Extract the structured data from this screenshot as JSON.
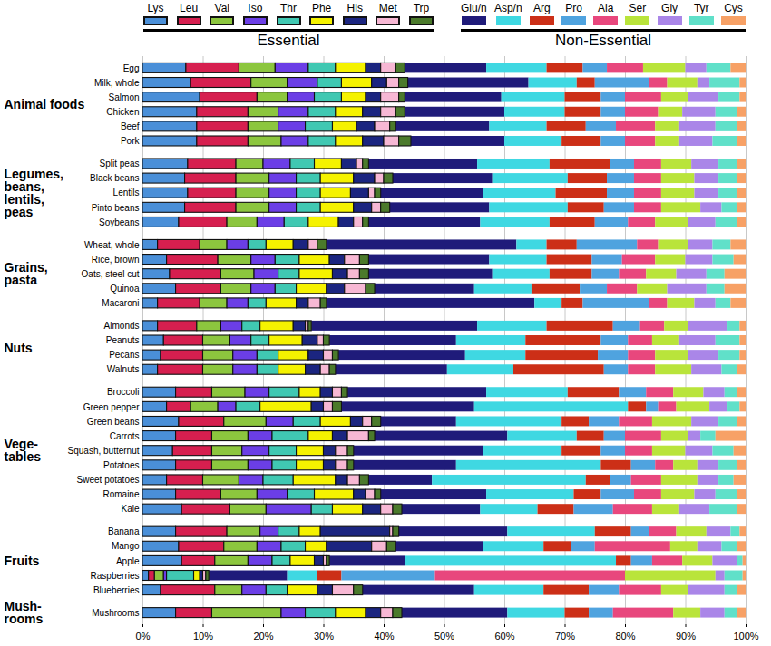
{
  "chart_data": {
    "type": "bar",
    "orientation": "horizontal",
    "stacked": true,
    "grid": true,
    "legend": "top",
    "xlim": [
      0,
      100
    ],
    "xticks": [
      {
        "value": 0,
        "label": "0%"
      },
      {
        "value": 10,
        "label": "10%"
      },
      {
        "value": 20,
        "label": "20%"
      },
      {
        "value": 30,
        "label": "30%"
      },
      {
        "value": 40,
        "label": "40%"
      },
      {
        "value": 50,
        "label": "50%"
      },
      {
        "value": 60,
        "label": "60%"
      },
      {
        "value": 70,
        "label": "70%"
      },
      {
        "value": 80,
        "label": "80%"
      },
      {
        "value": 90,
        "label": "90%"
      },
      {
        "value": 100,
        "label": "100%"
      }
    ],
    "groups": [
      {
        "label": "Animal foods",
        "categories": [
          "Egg",
          "Milk, whole",
          "Salmon",
          "Chicken",
          "Beef",
          "Pork"
        ]
      },
      {
        "label": "Legumes,\nbeans,\nlentils,\npeas",
        "categories": [
          "Split peas",
          "Black beans",
          "Lentils",
          "Pinto beans",
          "Soybeans"
        ]
      },
      {
        "label": "Grains,\npasta",
        "categories": [
          "Wheat, whole",
          "Rice, brown",
          "Oats, steel cut",
          "Quinoa",
          "Macaroni"
        ]
      },
      {
        "label": "Nuts",
        "categories": [
          "Almonds",
          "Peanuts",
          "Pecans",
          "Walnuts"
        ]
      },
      {
        "label": "Vege-\ntables",
        "categories": [
          "Broccoli",
          "Green pepper",
          "Green beans",
          "Carrots",
          "Squash, butternut",
          "Potatoes",
          "Sweet potatoes",
          "Romaine",
          "Kale"
        ]
      },
      {
        "label": "Fruits",
        "categories": [
          "Banana",
          "Mango",
          "Apple",
          "Raspberries",
          "Blueberries"
        ]
      },
      {
        "label": "Mush-\nrooms",
        "categories": [
          "Mushrooms"
        ]
      }
    ],
    "series": [
      {
        "name": "Lys",
        "class": "Essential",
        "color": "#4a8fd8",
        "values": [
          7.2,
          8,
          9.5,
          9,
          9,
          9,
          7.5,
          7,
          7.5,
          7,
          6,
          2.5,
          4,
          4.5,
          5.5,
          2.5,
          2.5,
          3.5,
          3,
          2.5,
          5.5,
          4,
          6,
          5.5,
          5,
          5.5,
          4,
          5.5,
          6.5,
          5.5,
          6,
          6.5,
          1,
          3,
          5.5
        ]
      },
      {
        "name": "Leu",
        "class": "Essential",
        "color": "#d61f4f",
        "values": [
          8.8,
          10,
          9.5,
          8.5,
          8.5,
          8.5,
          8,
          8.5,
          8,
          8.5,
          8,
          7,
          8.5,
          8.5,
          7.5,
          7,
          6.5,
          6.5,
          7,
          7.5,
          6,
          4,
          7.5,
          6,
          6.5,
          6,
          6,
          7.5,
          8,
          8.5,
          7.5,
          5.5,
          1,
          9,
          6
        ]
      },
      {
        "name": "Val",
        "class": "Essential",
        "color": "#8cc63e",
        "values": [
          6,
          6,
          5,
          5,
          5,
          5.5,
          4.5,
          5.5,
          5.5,
          5.5,
          5,
          4.5,
          5.5,
          5.5,
          5,
          4.5,
          4,
          4.5,
          5,
          5,
          5.5,
          4.5,
          7,
          6,
          5,
          6,
          6,
          6,
          6,
          5.5,
          5.5,
          5.5,
          1.5,
          4.5,
          11.5
        ]
      },
      {
        "name": "Iso",
        "class": "Essential",
        "color": "#6b3ee6",
        "values": [
          5.5,
          5,
          4.5,
          5,
          4.5,
          4.5,
          4.5,
          4.5,
          4.5,
          4.5,
          4.5,
          3.5,
          4,
          4,
          4,
          3.5,
          3.5,
          3.5,
          4,
          4,
          4,
          3,
          4.5,
          4,
          4.5,
          4,
          4,
          5,
          7.5,
          3,
          4,
          4,
          0.5,
          4,
          4
        ]
      },
      {
        "name": "Thr",
        "class": "Essential",
        "color": "#40c8b2",
        "values": [
          4.5,
          4,
          4.5,
          4.5,
          4.5,
          4.5,
          4,
          4,
          4,
          4,
          4,
          3,
          4,
          3.5,
          3.5,
          3,
          3,
          3,
          3.5,
          3.5,
          5,
          4,
          4.5,
          6,
          4.5,
          4,
          5,
          4.5,
          3.5,
          3.5,
          4,
          3,
          4.5,
          3.5,
          5
        ]
      },
      {
        "name": "Phe",
        "class": "Essential",
        "color": "#f5f200",
        "values": [
          5,
          5,
          4,
          4.5,
          4,
          4.5,
          4.5,
          5.5,
          5,
          5.5,
          5,
          4.5,
          5,
          5.5,
          5,
          5,
          5.5,
          5.5,
          5,
          4.5,
          3.5,
          8.5,
          5,
          4,
          4.5,
          4.5,
          7,
          6.5,
          5,
          3.5,
          3.5,
          4,
          1,
          5,
          5
        ]
      },
      {
        "name": "His",
        "class": "Essential",
        "color": "#1b2580",
        "values": [
          2.5,
          2.5,
          2.5,
          3,
          3,
          3.5,
          2.5,
          3.5,
          3,
          3,
          2.5,
          2.5,
          2.5,
          2.5,
          3,
          2,
          2,
          2.5,
          2.5,
          2.5,
          2,
          2,
          2,
          2.5,
          2,
          2,
          2,
          2,
          3,
          11.5,
          7.5,
          1.5,
          0.5,
          2.5,
          2.5
        ]
      },
      {
        "name": "Met",
        "class": "Essential",
        "color": "#f7b8d4",
        "values": [
          2.5,
          2,
          3,
          2.5,
          2.5,
          2.5,
          1,
          1.5,
          1,
          1.5,
          1.5,
          1.5,
          2.5,
          2,
          3.5,
          2,
          0.5,
          1,
          1.5,
          1.5,
          1.5,
          1.5,
          1.5,
          3.5,
          2,
          2,
          2,
          1.5,
          2,
          0.5,
          2.5,
          0.5,
          0.5,
          3.5,
          2
        ]
      },
      {
        "name": "Trp",
        "class": "Essential",
        "color": "#4b7a2b",
        "values": [
          1.5,
          1.5,
          1,
          1.5,
          1,
          2,
          1,
          1.5,
          1,
          1.5,
          1,
          1.5,
          1.5,
          1.5,
          1.5,
          1,
          0.5,
          1,
          1,
          1,
          1,
          1.5,
          1.5,
          1,
          1,
          1,
          1.5,
          1,
          1.5,
          1,
          1.5,
          0.5,
          0.5,
          1.5,
          1.5
        ]
      },
      {
        "name": "Glu/n",
        "class": "Non-Essential",
        "color": "#1f1b7a",
        "values": [
          13.5,
          20,
          16,
          16.5,
          15.5,
          15.5,
          18,
          16.5,
          17,
          16.5,
          18.5,
          31.5,
          20,
          20.5,
          16.5,
          34.5,
          27.5,
          21,
          21,
          18.5,
          23,
          22,
          12.5,
          22,
          21.5,
          17,
          10.5,
          17.5,
          13,
          18,
          14.5,
          12.5,
          13,
          18.5,
          17.5
        ]
      },
      {
        "name": "Asp/n",
        "class": "Non-Essential",
        "color": "#3fd8e2",
        "values": [
          10,
          8,
          10.5,
          10,
          9.5,
          9.5,
          12,
          12.5,
          12,
          13,
          11.5,
          5,
          9.5,
          9.5,
          9.5,
          4.5,
          11.5,
          11.5,
          10,
          11,
          13.5,
          25.5,
          17.5,
          11.5,
          13,
          24,
          25.5,
          14.5,
          9.5,
          14.5,
          10,
          35,
          5,
          11.5,
          9.5
        ]
      },
      {
        "name": "Arg",
        "class": "Non-Essential",
        "color": "#cc2f17",
        "values": [
          6,
          3,
          6,
          6,
          6.5,
          6.5,
          10,
          6.5,
          8.5,
          6,
          7.5,
          5,
          7.5,
          7,
          8,
          3.5,
          11,
          12.5,
          12,
          15,
          8.5,
          3,
          4.5,
          4.5,
          6.5,
          5,
          4,
          4.5,
          6,
          6,
          4.5,
          2.5,
          4,
          7.5,
          4
        ]
      },
      {
        "name": "Pro",
        "class": "Non-Essential",
        "color": "#4fa3df",
        "values": [
          4,
          9,
          4,
          4,
          5,
          4,
          4,
          4.5,
          4.5,
          5,
          5.5,
          10,
          5,
          4.5,
          4.5,
          11,
          4.5,
          4.5,
          5,
          4,
          4.5,
          2,
          5,
          3.5,
          4,
          4,
          3.5,
          5.5,
          6.5,
          3,
          4,
          3.5,
          15.5,
          5,
          4
        ]
      },
      {
        "name": "Ala",
        "class": "Non-Essential",
        "color": "#e8477d",
        "values": [
          6,
          3,
          6,
          5.5,
          6.5,
          5,
          4.5,
          4.5,
          4.5,
          4.5,
          4.5,
          3.5,
          5.5,
          4.5,
          5,
          3,
          4,
          4,
          4.5,
          4.5,
          4.5,
          3,
          5.5,
          6,
          4.5,
          3,
          5,
          4.5,
          6.5,
          4.5,
          12.5,
          5,
          31.5,
          7,
          10
        ]
      },
      {
        "name": "Ser",
        "class": "Non-Essential",
        "color": "#b9e43b",
        "values": [
          7,
          5,
          4.5,
          4,
          4,
          4,
          5,
          5.5,
          5.5,
          6.5,
          5.5,
          5,
          5,
          5,
          5,
          4.5,
          4,
          4.5,
          5.5,
          6,
          5,
          5.5,
          6.5,
          4.5,
          5.5,
          4,
          6,
          5.5,
          4.5,
          5,
          4.5,
          5,
          15,
          4.5,
          4.5
        ]
      },
      {
        "name": "Gly",
        "class": "Non-Essential",
        "color": "#aa86e8",
        "values": [
          3.5,
          2,
          5,
          5.5,
          6,
          5.5,
          4.5,
          4,
          4,
          3.5,
          4.5,
          4,
          4.5,
          5,
          6.5,
          3.5,
          6.5,
          6,
          5,
          5,
          3.5,
          3,
          4.5,
          2,
          4.5,
          3.5,
          3.5,
          3.5,
          5,
          4,
          4,
          4,
          1.5,
          6,
          4
        ]
      },
      {
        "name": "Tyr",
        "class": "Non-Essential",
        "color": "#60e0c9",
        "values": [
          4,
          5,
          3.5,
          3.5,
          3.5,
          4,
          3,
          3,
          3,
          2.5,
          3.5,
          3,
          3.5,
          3,
          3,
          2.5,
          2,
          4,
          3.5,
          2.5,
          2,
          2,
          3,
          2.5,
          3.5,
          3,
          2.5,
          3.5,
          4.5,
          1.5,
          2.5,
          1,
          3,
          2,
          2
        ]
      },
      {
        "name": "Cys",
        "class": "Non-Essential",
        "color": "#f7a166",
        "values": [
          2.5,
          1,
          1,
          1.5,
          1.5,
          1.5,
          1.5,
          1.5,
          1.5,
          1.5,
          1.5,
          2.5,
          2,
          3.5,
          3.5,
          2.5,
          1,
          1,
          1,
          1.5,
          1.5,
          1,
          1.5,
          5,
          2,
          1.5,
          2,
          1.5,
          1.5,
          1,
          1.5,
          0.5,
          0.5,
          1.5,
          1.5
        ]
      }
    ]
  }
}
